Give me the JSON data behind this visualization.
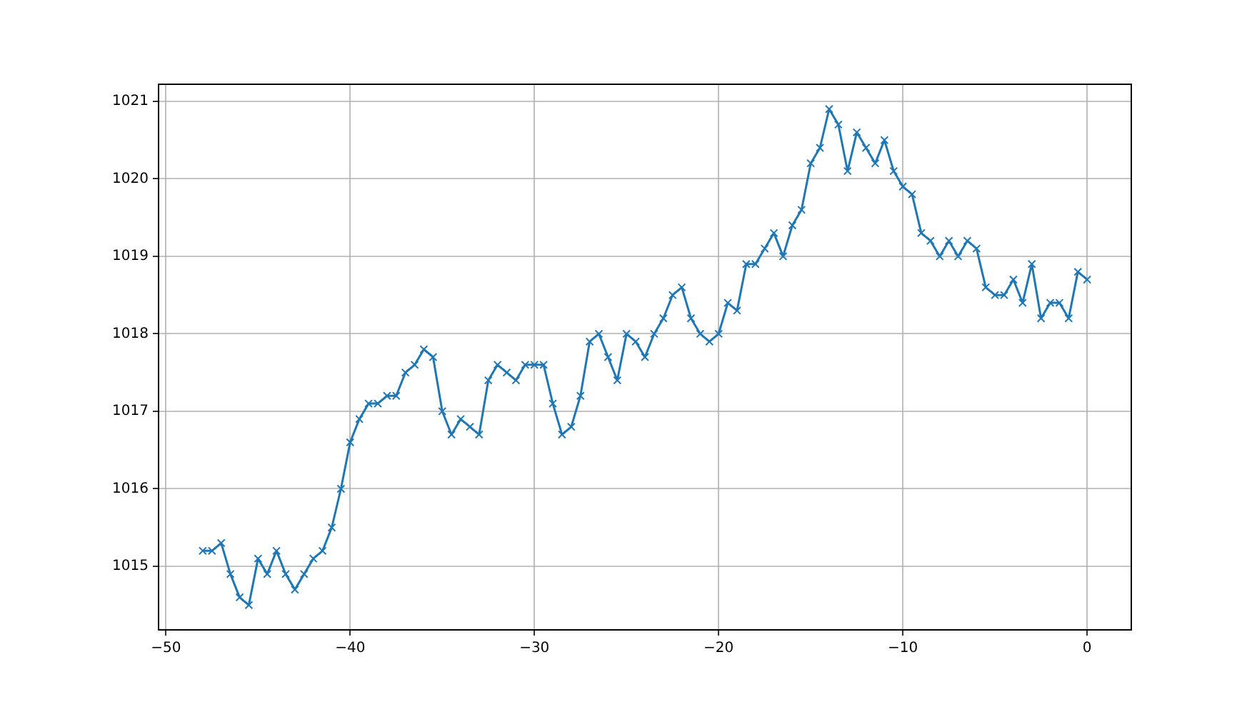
{
  "chart_data": {
    "type": "line",
    "x": [
      -48,
      -47.5,
      -47,
      -46.5,
      -46,
      -45.5,
      -45,
      -44.5,
      -44,
      -43.5,
      -43,
      -42.5,
      -42,
      -41.5,
      -41,
      -40.5,
      -40,
      -39.5,
      -39,
      -38.5,
      -38,
      -37.5,
      -37,
      -36.5,
      -36,
      -35.5,
      -35,
      -34.5,
      -34,
      -33.5,
      -33,
      -32.5,
      -32,
      -31.5,
      -31,
      -30.5,
      -30,
      -29.5,
      -29,
      -28.5,
      -28,
      -27.5,
      -27,
      -26.5,
      -26,
      -25.5,
      -25,
      -24.5,
      -24,
      -23.5,
      -23,
      -22.5,
      -22,
      -21.5,
      -21,
      -20.5,
      -20,
      -19.5,
      -19,
      -18.5,
      -18,
      -17.5,
      -17,
      -16.5,
      -16,
      -15.5,
      -15,
      -14.5,
      -14,
      -13.5,
      -13,
      -12.5,
      -12,
      -11.5,
      -11,
      -10.5,
      -10,
      -9.5,
      -9,
      -8.5,
      -8,
      -7.5,
      -7,
      -6.5,
      -6,
      -5.5,
      -5,
      -4.5,
      -4,
      -3.5,
      -3,
      -2.5,
      -2,
      -1.5,
      -1,
      -0.5,
      0
    ],
    "series": [
      {
        "color": "#1f77b4",
        "values": [
          1015.2,
          1015.2,
          1015.3,
          1014.9,
          1014.6,
          1014.5,
          1015.1,
          1014.9,
          1015.2,
          1014.9,
          1014.7,
          1014.9,
          1015.1,
          1015.2,
          1015.5,
          1016.0,
          1016.6,
          1016.9,
          1017.1,
          1017.1,
          1017.2,
          1017.2,
          1017.5,
          1017.6,
          1017.8,
          1017.7,
          1017.0,
          1016.7,
          1016.9,
          1016.8,
          1016.7,
          1017.4,
          1017.6,
          1017.5,
          1017.4,
          1017.6,
          1017.6,
          1017.6,
          1017.1,
          1016.7,
          1016.8,
          1017.2,
          1017.9,
          1018.0,
          1017.7,
          1017.4,
          1018.0,
          1017.9,
          1017.7,
          1018.0,
          1018.2,
          1018.5,
          1018.6,
          1018.2,
          1018.0,
          1017.9,
          1018.0,
          1018.4,
          1018.3,
          1018.9,
          1018.9,
          1019.1,
          1019.3,
          1019.0,
          1019.4,
          1019.6,
          1020.2,
          1020.4,
          1020.9,
          1020.7,
          1020.1,
          1020.6,
          1020.4,
          1020.2,
          1020.5,
          1020.1,
          1019.9,
          1019.8,
          1019.3,
          1019.2,
          1019.0,
          1019.2,
          1019.0,
          1019.2,
          1019.1,
          1018.6,
          1018.5,
          1018.5,
          1018.7,
          1018.4,
          1018.9,
          1018.2,
          1018.4,
          1018.4,
          1018.2,
          1018.8,
          1018.7
        ]
      }
    ],
    "xlim": [
      -50.4,
      2.4
    ],
    "ylim": [
      1014.18,
      1021.22
    ],
    "xticks": [
      {
        "value": -50,
        "label": "−50"
      },
      {
        "value": -40,
        "label": "−40"
      },
      {
        "value": -30,
        "label": "−30"
      },
      {
        "value": -20,
        "label": "−20"
      },
      {
        "value": -10,
        "label": "−10"
      },
      0
    ],
    "yticks": [
      1015,
      1016,
      1017,
      1018,
      1019,
      1020,
      1021
    ],
    "grid": true,
    "marker": "cross",
    "line_style": "solid"
  }
}
